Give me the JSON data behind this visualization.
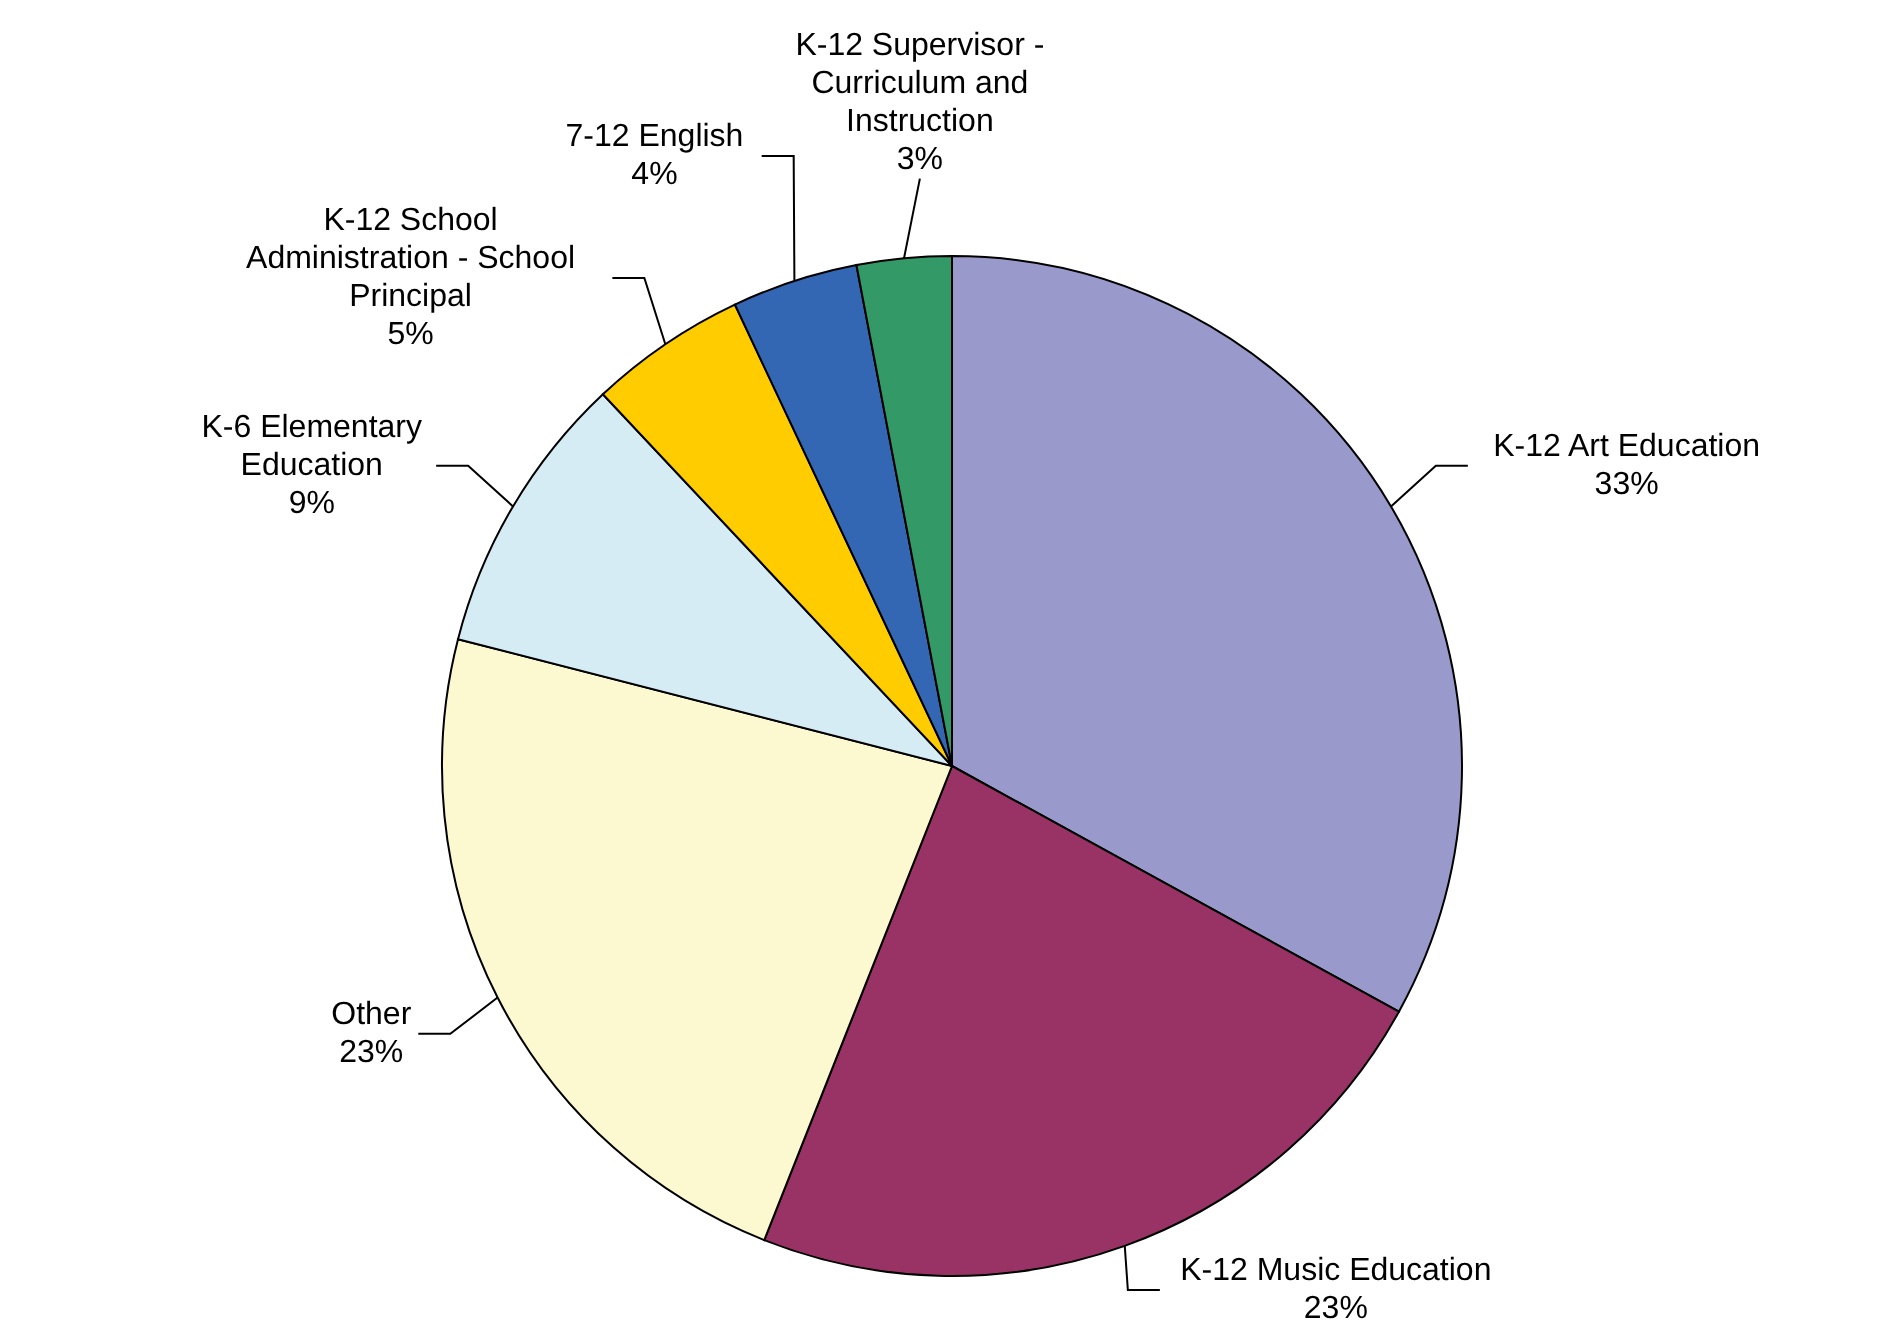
{
  "chart_data": {
    "type": "pie",
    "categories": [
      "K-12 Art Education",
      "K-12 Music Education",
      "Other",
      "K-6 Elementary Education",
      "K-12 School Administration - School Principal",
      "7-12 English",
      "K-12 Supervisor - Curriculum and Instruction"
    ],
    "values": [
      33,
      23,
      23,
      9,
      5,
      4,
      3
    ],
    "value_labels": [
      "33%",
      "23%",
      "23%",
      "9%",
      "5%",
      "4%",
      "3%"
    ],
    "colors": [
      "#9999cc",
      "#993366",
      "#fcf8d0",
      "#d6ecf4",
      "#ffcc00",
      "#3366b3",
      "#339966"
    ]
  }
}
